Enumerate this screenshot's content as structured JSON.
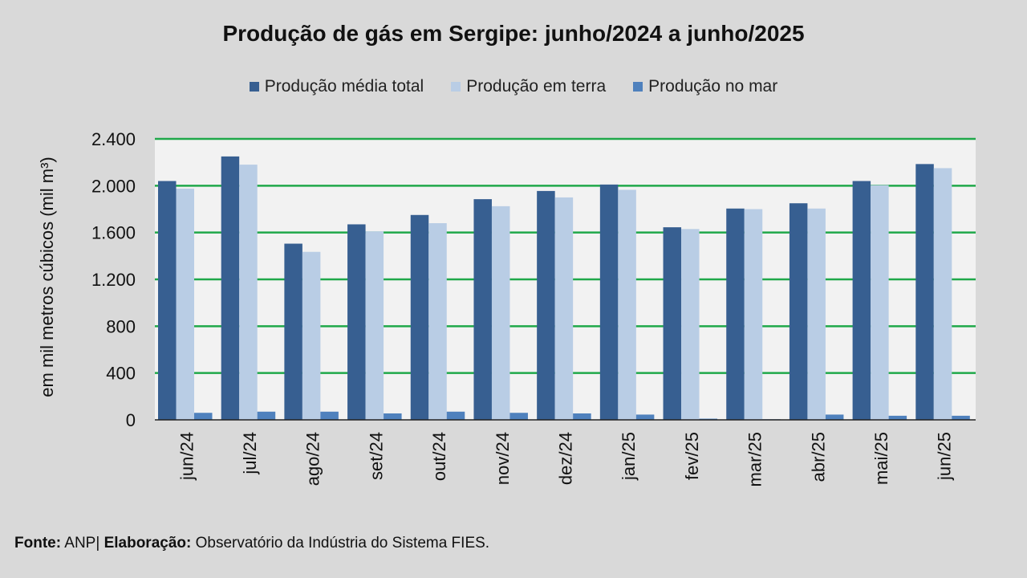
{
  "chart_data": {
    "type": "bar",
    "title": "Produção de gás em Sergipe: junho/2024 a junho/2025",
    "ylabel": "em mil metros cúbicos (mil m³)",
    "xlabel": "",
    "ylim": [
      0,
      2400
    ],
    "yticks": [
      0,
      400,
      800,
      1200,
      1600,
      2000,
      2400
    ],
    "ytick_labels": [
      "0",
      "400",
      "800",
      "1.200",
      "1.600",
      "2.000",
      "2.400"
    ],
    "grid": true,
    "legend_position": "top",
    "categories": [
      "jun/24",
      "jul/24",
      "ago/24",
      "set/24",
      "out/24",
      "nov/24",
      "dez/24",
      "jan/25",
      "fev/25",
      "mar/25",
      "abr/25",
      "mai/25",
      "jun/25"
    ],
    "series": [
      {
        "name": "Produção média total",
        "color": "#375f91",
        "values": [
          2040,
          2250,
          1505,
          1670,
          1750,
          1885,
          1955,
          2010,
          1645,
          1805,
          1850,
          2040,
          2185
        ]
      },
      {
        "name": "Produção em terra",
        "color": "#b9cde5",
        "values": [
          1975,
          2180,
          1435,
          1610,
          1680,
          1825,
          1900,
          1965,
          1630,
          1800,
          1805,
          2005,
          2150
        ]
      },
      {
        "name": "Produção no mar",
        "color": "#4f81bd",
        "values": [
          60,
          70,
          70,
          55,
          70,
          60,
          55,
          45,
          10,
          5,
          45,
          35,
          35
        ]
      }
    ]
  },
  "footer": {
    "source_label": "Fonte:",
    "source_value": "ANP|",
    "elaboration_label": "Elaboração:",
    "elaboration_value": "Observatório da Indústria do Sistema FIES."
  }
}
